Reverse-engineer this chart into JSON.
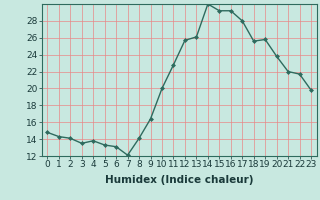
{
  "x": [
    0,
    1,
    2,
    3,
    4,
    5,
    6,
    7,
    8,
    9,
    10,
    11,
    12,
    13,
    14,
    15,
    16,
    17,
    18,
    19,
    20,
    21,
    22,
    23
  ],
  "y": [
    14.8,
    14.3,
    14.1,
    13.5,
    13.8,
    13.3,
    13.1,
    12.1,
    14.1,
    16.4,
    20.0,
    22.8,
    25.7,
    26.1,
    30.0,
    29.2,
    29.2,
    28.0,
    25.6,
    25.8,
    23.8,
    22.0,
    21.7,
    19.8
  ],
  "line_color": "#2e6b5e",
  "marker": "D",
  "marker_size": 2.0,
  "bg_color": "#c8e8e0",
  "grid_color": "#e88888",
  "xlabel": "Humidex (Indice chaleur)",
  "ylim": [
    12,
    30
  ],
  "xlim": [
    -0.5,
    23.5
  ],
  "yticks": [
    12,
    14,
    16,
    18,
    20,
    22,
    24,
    26,
    28
  ],
  "xticks": [
    0,
    1,
    2,
    3,
    4,
    5,
    6,
    7,
    8,
    9,
    10,
    11,
    12,
    13,
    14,
    15,
    16,
    17,
    18,
    19,
    20,
    21,
    22,
    23
  ],
  "xlabel_fontsize": 7.5,
  "tick_fontsize": 6.5,
  "line_width": 1.0
}
